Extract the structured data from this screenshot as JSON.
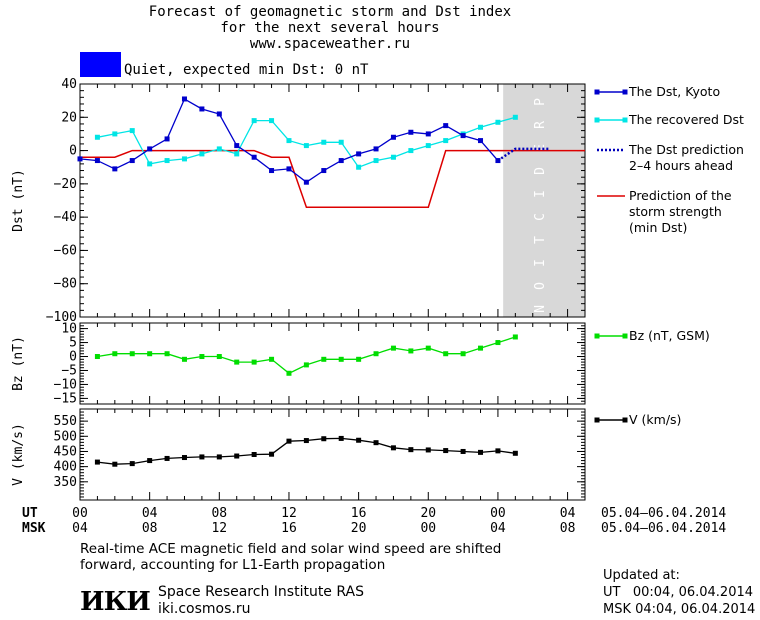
{
  "header": {
    "line1": "Forecast of geomagnetic storm and Dst index",
    "line2": "for the next several hours",
    "line3": "www.spaceweather.ru",
    "quiet_label": "Quiet, expected min Dst: 0 nT"
  },
  "colors": {
    "dst_kyoto": "#0000cc",
    "recovered": "#00e5e5",
    "prediction_dotted": "#0000bb",
    "storm_strength": "#dd0000",
    "bz": "#00dd00",
    "v": "#000000",
    "prediction_band": "#d8d8d8",
    "quiet_swatch": "#0000ff"
  },
  "chart_data": [
    {
      "type": "line",
      "ylabel": "Dst (nT)",
      "ylim": [
        -100,
        40
      ],
      "yticks": [
        40,
        20,
        0,
        -20,
        -40,
        -60,
        -80,
        -100
      ],
      "xlim": [
        0,
        24
      ],
      "band_label": "PREDICTION",
      "band_x": [
        19.5,
        24
      ],
      "series": [
        {
          "name": "The Dst, Kyoto",
          "x": [
            0,
            1,
            2,
            3,
            4,
            5,
            6,
            7,
            8,
            9,
            10,
            11,
            12,
            13,
            14,
            15,
            16,
            17,
            18,
            19,
            20,
            21,
            22,
            23,
            24,
            25
          ],
          "values": [
            null,
            null,
            null,
            null,
            null,
            null,
            null,
            null,
            null,
            null,
            null,
            null,
            null,
            null,
            null,
            null,
            null,
            null,
            null,
            null,
            null,
            null,
            null,
            null,
            null,
            null
          ]
        },
        {
          "name": "The recovered Dst",
          "x": [],
          "values": []
        },
        {
          "name": "The Dst prediction 2–4 hours ahead",
          "x": [],
          "values": []
        },
        {
          "name": "Prediction of the storm strength (min Dst)",
          "x": [],
          "values": []
        }
      ]
    },
    {
      "type": "line",
      "ylabel": "Bz (nT)",
      "ylim": [
        -17,
        12
      ],
      "yticks": [
        10,
        5,
        0,
        -5,
        -10,
        -15
      ],
      "series": [
        {
          "name": "Bz (nT, GSM)",
          "x": [],
          "values": []
        }
      ]
    },
    {
      "type": "line",
      "ylabel": "V (km/s)",
      "ylim": [
        290,
        590
      ],
      "yticks": [
        550,
        500,
        450,
        400,
        350
      ],
      "series": [
        {
          "name": "V (km/s)",
          "x": [],
          "values": []
        }
      ]
    }
  ],
  "xaxis": {
    "ut_label": "UT",
    "msk_label": "MSK",
    "ut_ticks": [
      "00",
      "04",
      "08",
      "12",
      "16",
      "20",
      "00",
      "04"
    ],
    "msk_ticks": [
      "04",
      "08",
      "12",
      "16",
      "20",
      "00",
      "04",
      "08"
    ],
    "ut_dates": "05.04–06.04.2014",
    "msk_dates": "05.04–06.04.2014"
  },
  "footer": {
    "note1": "Real-time ACE magnetic field and solar wind speed are shifted",
    "note2": "forward, accounting for L1-Earth propagation",
    "logo": "ИКИ",
    "org": "Space Research Institute RAS",
    "site": "iki.cosmos.ru",
    "updated": "Updated at:",
    "updated_ut": "UT   00:04, 06.04.2014",
    "updated_msk": "MSK 04:04, 06.04.2014"
  },
  "data_values": {
    "dst": [
      [
        0,
        -5
      ],
      [
        1,
        -6
      ],
      [
        2,
        -11
      ],
      [
        3,
        -6
      ],
      [
        4,
        1
      ],
      [
        5,
        7
      ],
      [
        6,
        31
      ],
      [
        7,
        25
      ],
      [
        8,
        22
      ],
      [
        9,
        3
      ],
      [
        10,
        -4
      ],
      [
        11,
        -12
      ],
      [
        12,
        -11
      ],
      [
        13,
        -19
      ],
      [
        14,
        -12
      ],
      [
        15,
        -6
      ],
      [
        16,
        -2
      ],
      [
        17,
        1
      ],
      [
        18,
        8
      ],
      [
        19,
        11
      ],
      [
        20,
        10
      ],
      [
        21,
        15
      ],
      [
        22,
        9
      ],
      [
        23,
        6
      ],
      [
        24,
        -6
      ]
    ],
    "recovered": [
      [
        1,
        8
      ],
      [
        2,
        10
      ],
      [
        3,
        12
      ],
      [
        4,
        -8
      ],
      [
        5,
        -6
      ],
      [
        6,
        -5
      ],
      [
        7,
        -2
      ],
      [
        8,
        1
      ],
      [
        9,
        -2
      ],
      [
        10,
        18
      ],
      [
        11,
        18
      ],
      [
        12,
        6
      ],
      [
        13,
        3
      ],
      [
        14,
        5
      ],
      [
        15,
        5
      ],
      [
        16,
        -10
      ],
      [
        17,
        -6
      ],
      [
        18,
        -4
      ],
      [
        19,
        0
      ],
      [
        20,
        3
      ],
      [
        21,
        6
      ],
      [
        22,
        10
      ],
      [
        23,
        14
      ],
      [
        24,
        17
      ],
      [
        25,
        20
      ]
    ],
    "dst_prediction": [
      [
        24,
        -6
      ],
      [
        25,
        1
      ],
      [
        26,
        1
      ],
      [
        27,
        1
      ]
    ],
    "storm_strength": [
      [
        0,
        -4
      ],
      [
        2,
        -4
      ],
      [
        3,
        0
      ],
      [
        10,
        0
      ],
      [
        11,
        -4
      ],
      [
        12,
        -4
      ],
      [
        13,
        -34
      ],
      [
        20,
        -34
      ],
      [
        21,
        0
      ],
      [
        29,
        0
      ]
    ],
    "bz": [
      [
        1,
        0
      ],
      [
        2,
        1
      ],
      [
        3,
        1
      ],
      [
        4,
        1
      ],
      [
        5,
        1
      ],
      [
        6,
        -1
      ],
      [
        7,
        0
      ],
      [
        8,
        0
      ],
      [
        9,
        -2
      ],
      [
        10,
        -2
      ],
      [
        11,
        -1
      ],
      [
        12,
        -6
      ],
      [
        13,
        -3
      ],
      [
        14,
        -1
      ],
      [
        15,
        -1
      ],
      [
        16,
        -1
      ],
      [
        17,
        1
      ],
      [
        18,
        3
      ],
      [
        19,
        2
      ],
      [
        20,
        3
      ],
      [
        21,
        1
      ],
      [
        22,
        1
      ],
      [
        23,
        3
      ],
      [
        24,
        5
      ],
      [
        25,
        7
      ]
    ],
    "v": [
      [
        1,
        415
      ],
      [
        2,
        408
      ],
      [
        3,
        410
      ],
      [
        4,
        420
      ],
      [
        5,
        427
      ],
      [
        6,
        430
      ],
      [
        7,
        432
      ],
      [
        8,
        432
      ],
      [
        9,
        435
      ],
      [
        10,
        440
      ],
      [
        11,
        441
      ],
      [
        12,
        484
      ],
      [
        13,
        486
      ],
      [
        14,
        492
      ],
      [
        15,
        493
      ],
      [
        16,
        487
      ],
      [
        17,
        479
      ],
      [
        18,
        462
      ],
      [
        19,
        456
      ],
      [
        20,
        455
      ],
      [
        21,
        453
      ],
      [
        22,
        450
      ],
      [
        23,
        447
      ],
      [
        24,
        452
      ],
      [
        25,
        444
      ]
    ]
  }
}
